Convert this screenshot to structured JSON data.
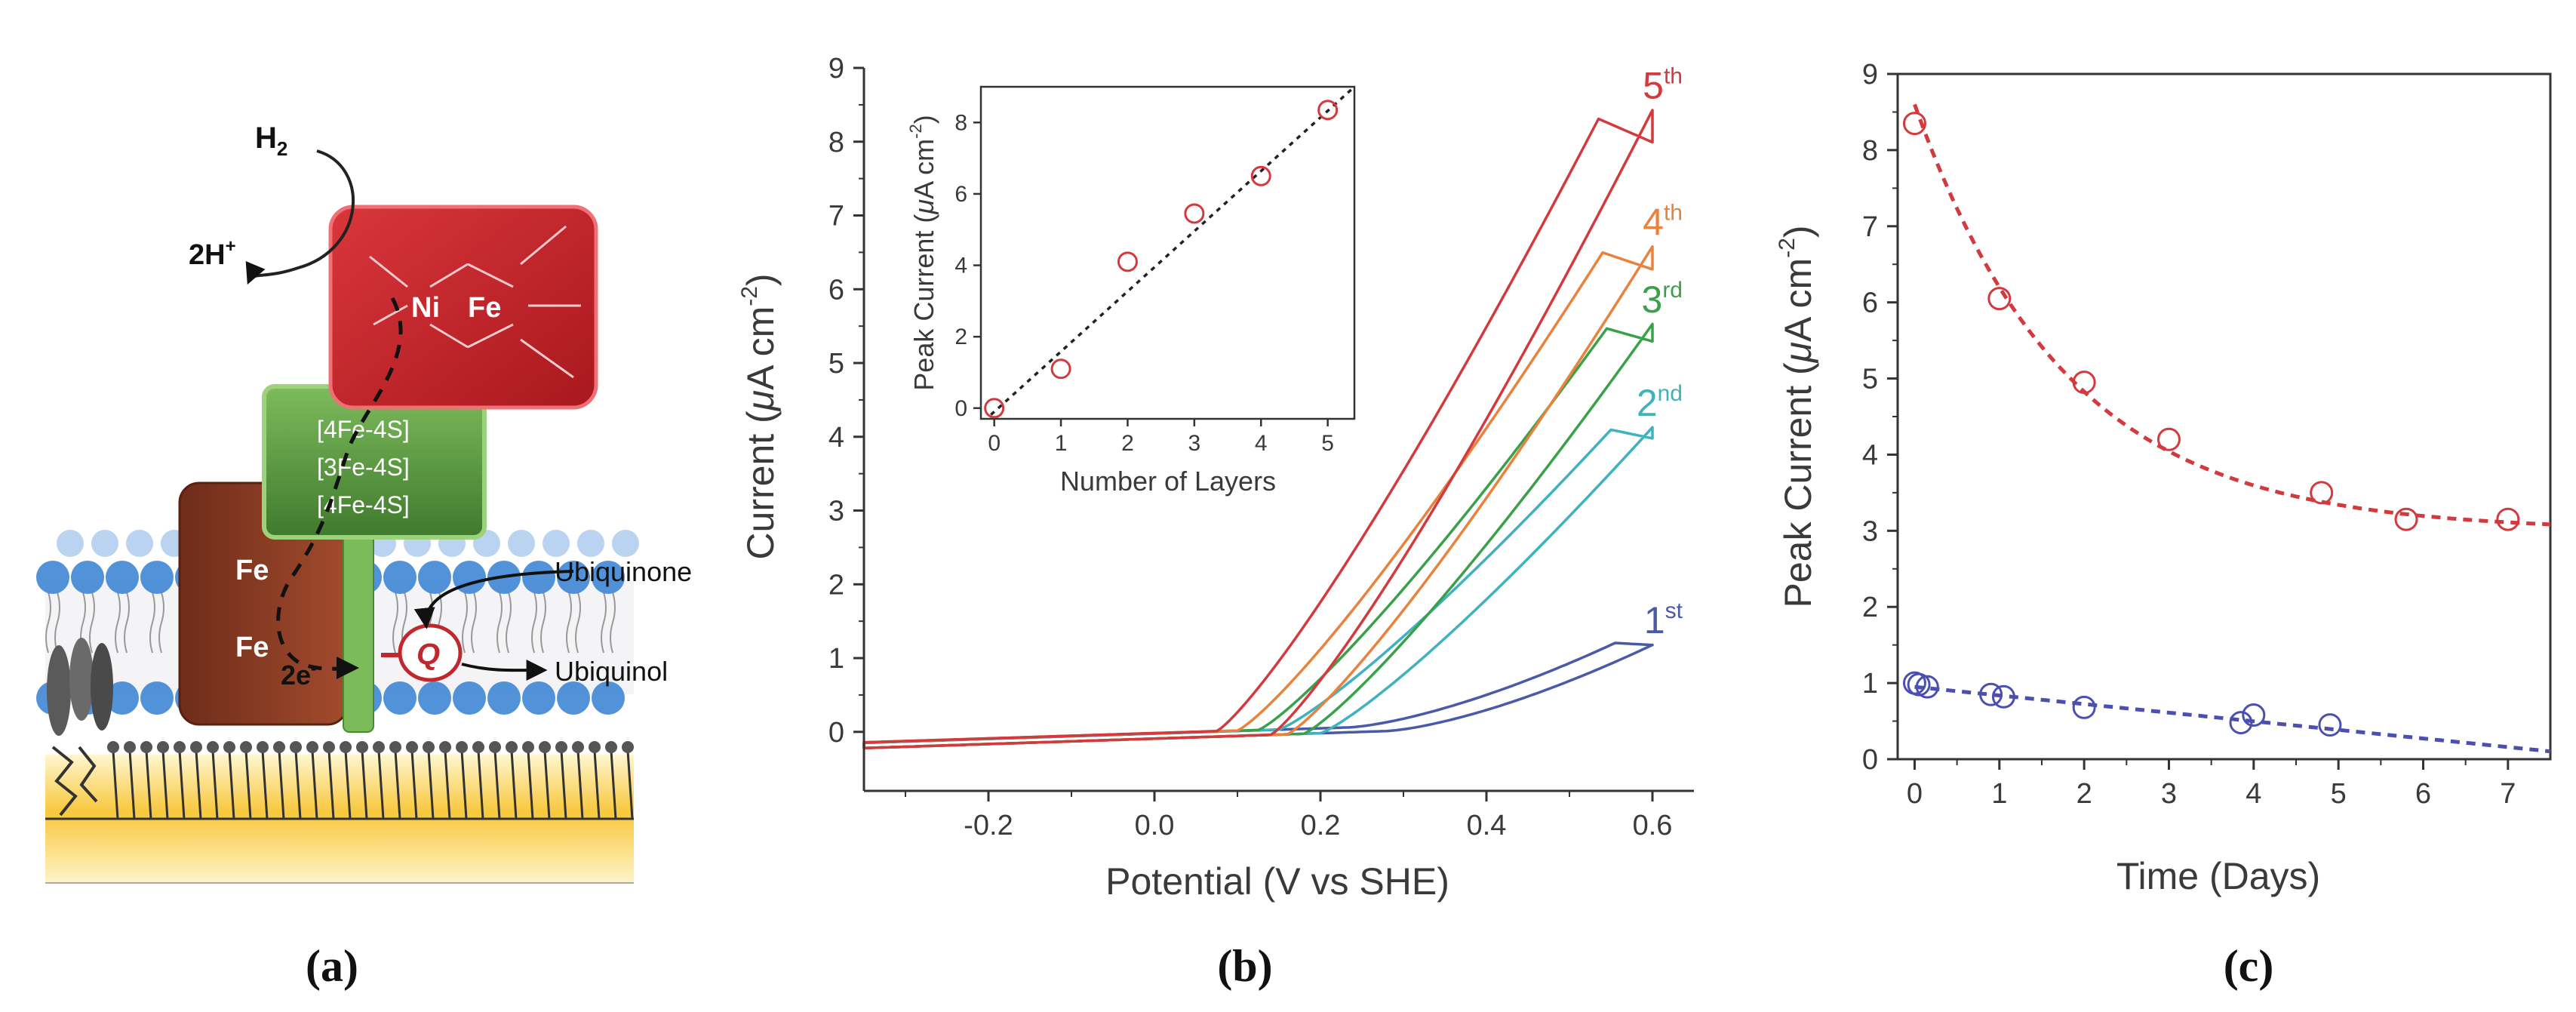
{
  "panels": {
    "a": "(a)",
    "b": "(b)",
    "c": "(c)"
  },
  "diagram": {
    "h2_label": "H",
    "h2_sub": "2",
    "proton_label": "2H",
    "proton_sup": "+",
    "ni_label": "Ni",
    "fe_label": "Fe",
    "cluster_1": "[4Fe-4S]",
    "cluster_2": "[3Fe-4S]",
    "cluster_3": "[4Fe-4S]",
    "heme_fe_top": "Fe",
    "heme_fe_bottom": "Fe",
    "electron_label": "2e",
    "electron_sup": "-",
    "quinone_label": "Q",
    "ubiquinone_label": "Ubiquinone",
    "ubiquinol_label": "Ubiquinol",
    "colors": {
      "nife": "#c0282d",
      "cluster": "#5f9a45",
      "heme": "#8a3d26",
      "gold": "#f7c63a",
      "lipid_head": "#3e86d4"
    }
  },
  "chart_data": [
    {
      "id": "b",
      "type": "line",
      "xlabel": "Potential (V vs SHE)",
      "ylabel_parts": {
        "pre": "Current (",
        "mu": "μ",
        "post": "A cm",
        "sup": "-2",
        "close": ")"
      },
      "xlim": [
        -0.35,
        0.65
      ],
      "ylim": [
        -0.8,
        9
      ],
      "xticks": [
        "-0.2",
        "0.0",
        "0.2",
        "0.4",
        "0.6"
      ],
      "yticks": [
        "0",
        "1",
        "2",
        "3",
        "4",
        "5",
        "6",
        "7",
        "8",
        "9"
      ],
      "series": [
        {
          "name": "1",
          "sup": "st",
          "color": "#4a5aa8",
          "peak": 1.05,
          "onset": 0.28,
          "shape": 1.5
        },
        {
          "name": "2",
          "sup": "nd",
          "color": "#3fb2bd",
          "peak": 4.0,
          "onset": 0.2,
          "shape": 1.2
        },
        {
          "name": "3",
          "sup": "rd",
          "color": "#3aa04a",
          "peak": 5.4,
          "onset": 0.18,
          "shape": 1.2
        },
        {
          "name": "4",
          "sup": "th",
          "color": "#e8823d",
          "peak": 6.45,
          "onset": 0.16,
          "shape": 1.2
        },
        {
          "name": "5",
          "sup": "th",
          "color": "#d23a3e",
          "peak": 8.3,
          "onset": 0.14,
          "shape": 1.2
        }
      ],
      "inset": {
        "type": "scatter",
        "xlabel": "Number of Layers",
        "ylabel_parts": {
          "pre": "Peak Current (",
          "mu": "μ",
          "post": "A cm",
          "sup": "-2",
          "close": ")"
        },
        "xlim": [
          -0.2,
          5.4
        ],
        "ylim": [
          -0.3,
          9
        ],
        "xticks": [
          "0",
          "1",
          "2",
          "3",
          "4",
          "5"
        ],
        "yticks": [
          "0",
          "2",
          "4",
          "6",
          "8"
        ],
        "x": [
          0,
          1,
          2,
          3,
          4,
          5
        ],
        "y": [
          0,
          1.1,
          4.1,
          5.45,
          6.5,
          8.35
        ],
        "fit": {
          "slope": 1.72,
          "intercept": -0.1
        },
        "marker_color": "#d23a3e"
      }
    },
    {
      "id": "c",
      "type": "scatter",
      "xlabel": "Time (Days)",
      "ylabel_parts": {
        "pre": "Peak Current (",
        "mu": "μ",
        "post": "A cm",
        "sup": "-2",
        "close": ")"
      },
      "xlim": [
        -0.2,
        7.5
      ],
      "ylim": [
        0,
        9
      ],
      "xticks": [
        "0",
        "1",
        "2",
        "3",
        "4",
        "5",
        "6",
        "7"
      ],
      "yticks": [
        "0",
        "1",
        "2",
        "3",
        "4",
        "5",
        "6",
        "7",
        "8",
        "9"
      ],
      "series": [
        {
          "name": "red",
          "color": "#d23a3e",
          "x": [
            0,
            1,
            2,
            3,
            4.8,
            5.8,
            7
          ],
          "y": [
            8.35,
            6.05,
            4.95,
            4.2,
            3.5,
            3.15,
            3.15
          ],
          "fit": {
            "a": 3.0,
            "b": 5.6,
            "k": 0.56
          }
        },
        {
          "name": "blue",
          "color": "#4a4fb0",
          "x": [
            0,
            0.05,
            0.15,
            0.9,
            1.05,
            2,
            3.85,
            4,
            4.9
          ],
          "y": [
            1.0,
            0.98,
            0.95,
            0.85,
            0.82,
            0.68,
            0.48,
            0.58,
            0.45
          ],
          "fit": {
            "a": 0.95,
            "b": -0.113
          }
        }
      ]
    }
  ]
}
